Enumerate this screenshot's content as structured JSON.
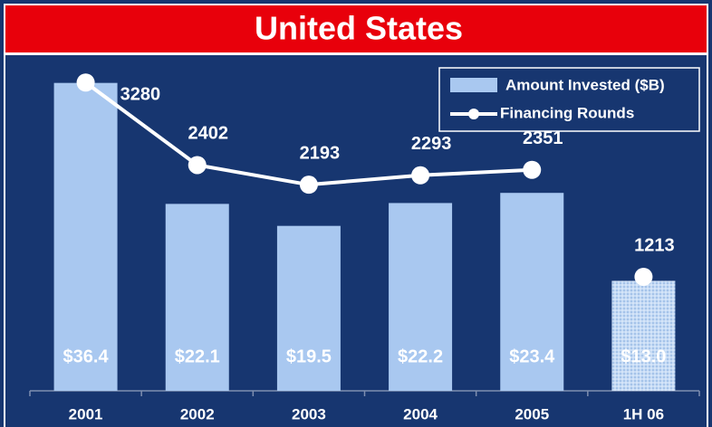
{
  "chart_data": {
    "type": "bar",
    "title": "United States",
    "categories": [
      "2001",
      "2002",
      "2003",
      "2004",
      "2005",
      "1H 06"
    ],
    "series": [
      {
        "name": "Amount Invested ($B)",
        "type": "bar",
        "color": "#a9c8f0",
        "values": [
          36.4,
          22.1,
          19.5,
          22.2,
          23.4,
          13.0
        ],
        "value_labels": [
          "$36.4",
          "$22.1",
          "$19.5",
          "$22.2",
          "$23.4",
          "$13.0"
        ]
      },
      {
        "name": "Financing Rounds",
        "type": "line",
        "color": "#ffffff",
        "axis": "y2",
        "values": [
          3280,
          2402,
          2193,
          2293,
          2351,
          1213
        ]
      }
    ],
    "ylim": [
      0,
      40
    ],
    "y2lim": [
      0,
      3600
    ],
    "legend": "top-right"
  }
}
